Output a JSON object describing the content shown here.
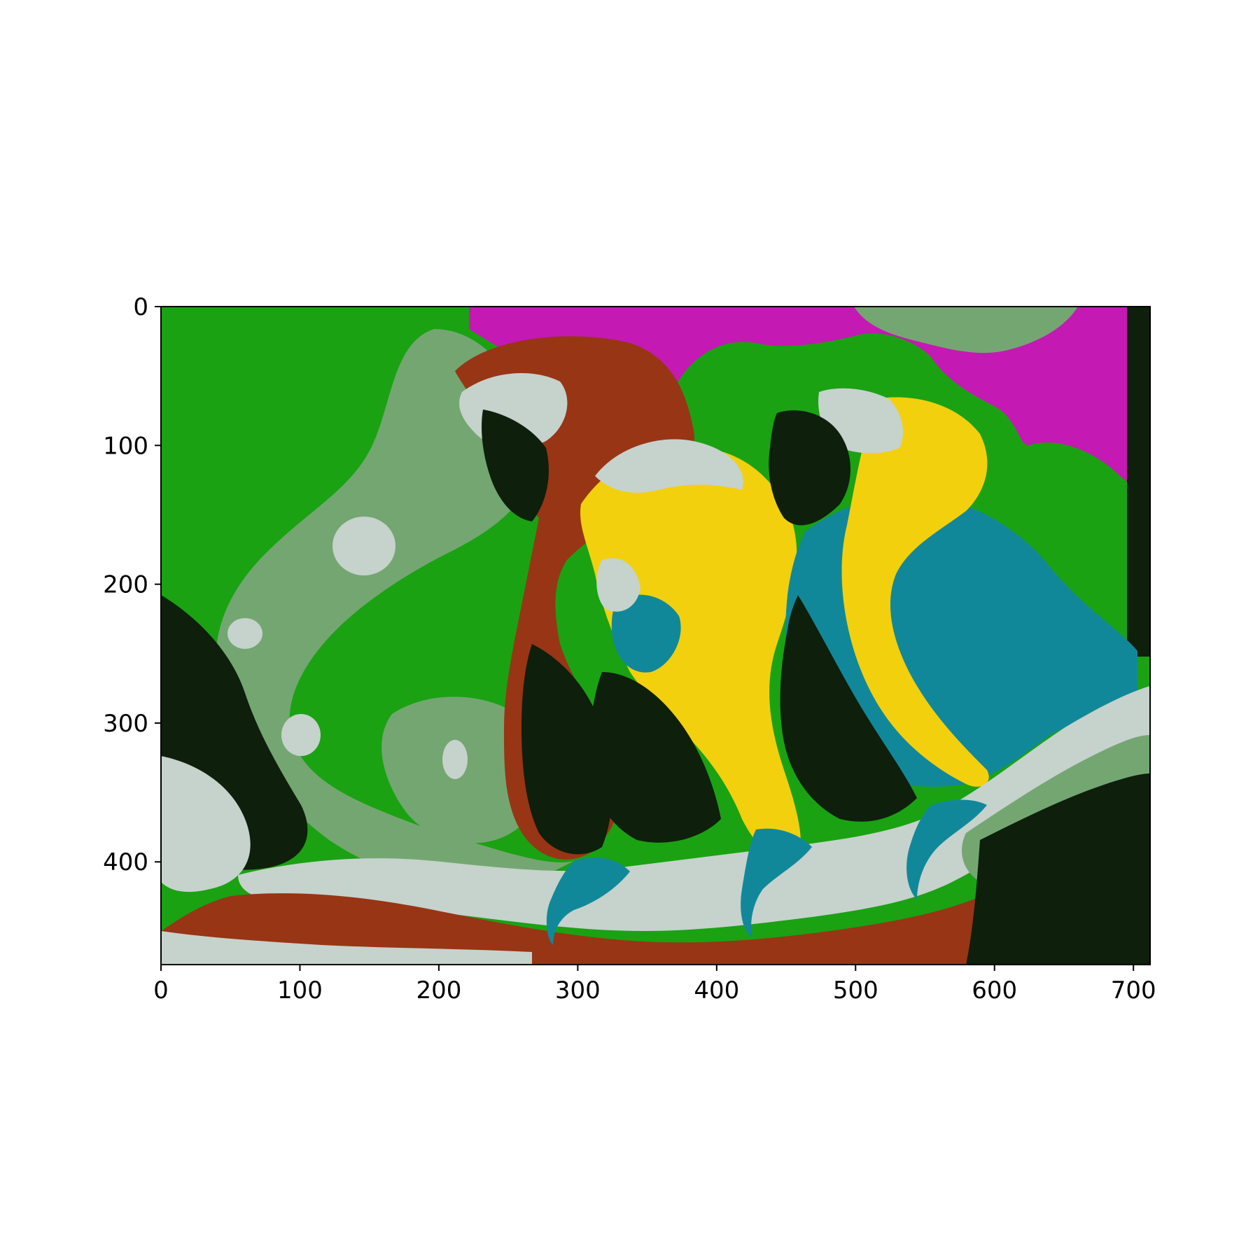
{
  "palette": {
    "green": "#1aa213",
    "sage": "#74a672",
    "pale": "#c6d2cc",
    "red": "#983515",
    "dark": "#0e1f0c",
    "magenta": "#c419b2",
    "yellow": "#f2d00d",
    "teal": "#11889a"
  },
  "figure": {
    "image_extent": {
      "width": 712,
      "height": 474
    },
    "x_axis": {
      "ticks": [
        0,
        100,
        200,
        300,
        400,
        500,
        600,
        700
      ]
    },
    "y_axis": {
      "ticks": [
        0,
        100,
        200,
        300,
        400
      ]
    }
  }
}
